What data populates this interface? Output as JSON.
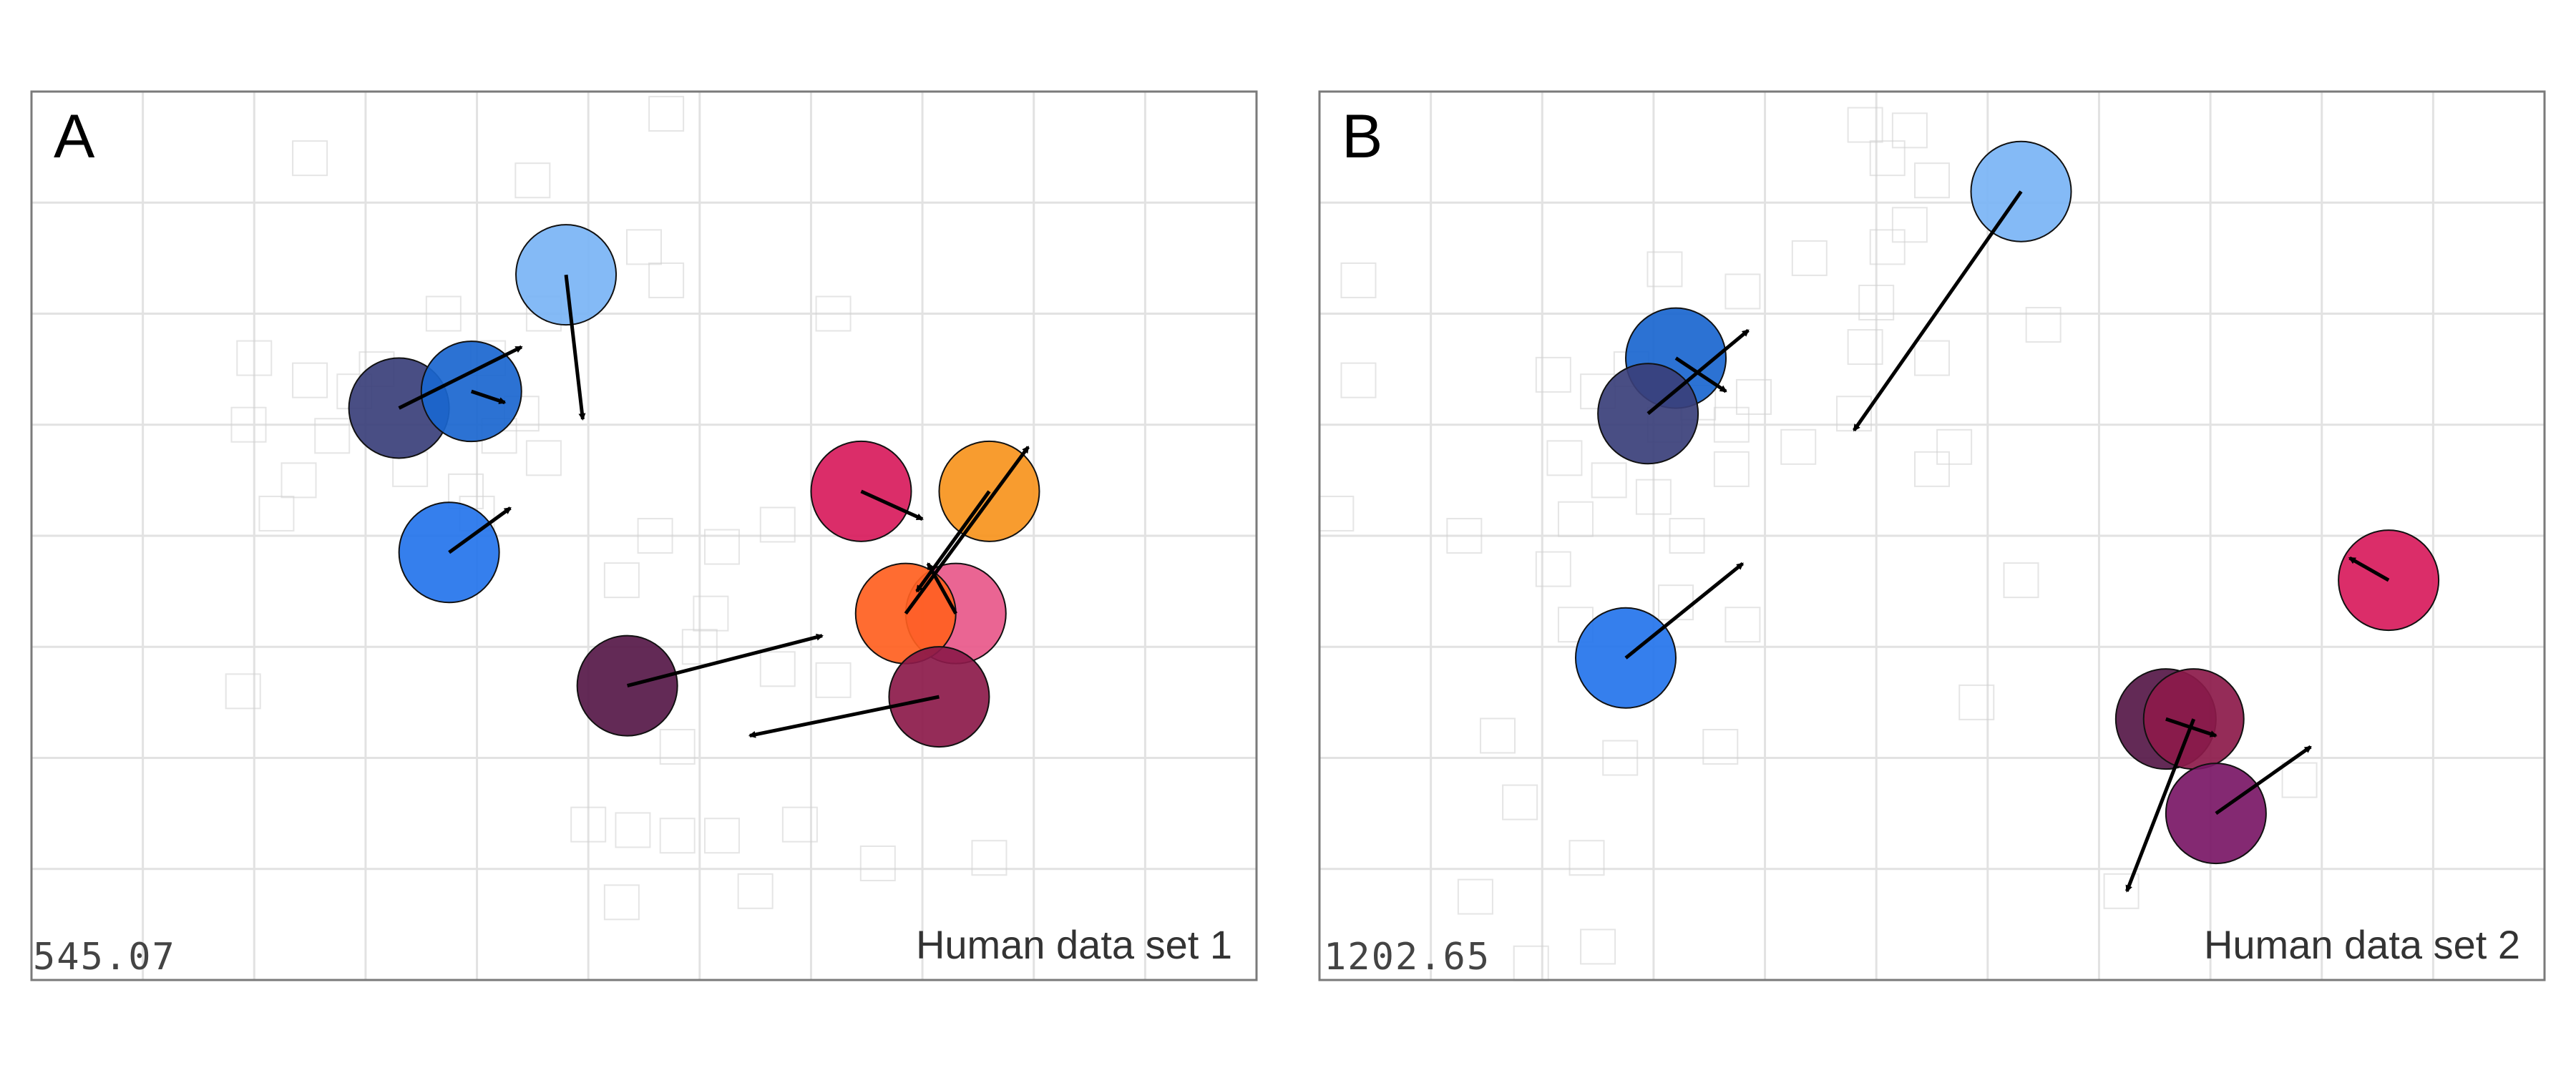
{
  "chart_data": [
    {
      "type": "scatter",
      "panel_label": "A",
      "corner_label": "Human data set 1",
      "corner_value": "545.07",
      "xlim": [
        0,
        11
      ],
      "ylim": [
        0,
        8
      ],
      "grid": true,
      "points": [
        {
          "x": 4.8,
          "y": 6.35,
          "color": "#7ab4f5",
          "dx": 0.15,
          "dy": -1.3
        },
        {
          "x": 3.3,
          "y": 5.15,
          "color": "#3a3f7a",
          "dx": 1.1,
          "dy": 0.55
        },
        {
          "x": 3.95,
          "y": 5.3,
          "color": "#1a66cf",
          "dx": 0.3,
          "dy": -0.1
        },
        {
          "x": 3.75,
          "y": 3.85,
          "color": "#2474ec",
          "dx": 0.55,
          "dy": 0.4
        },
        {
          "x": 7.45,
          "y": 4.4,
          "color": "#d81b5c",
          "dx": 0.55,
          "dy": -0.25
        },
        {
          "x": 8.6,
          "y": 4.4,
          "color": "#f7941d",
          "dx": -0.65,
          "dy": -0.9
        },
        {
          "x": 8.3,
          "y": 3.3,
          "color": "#e8588a",
          "dx": -0.25,
          "dy": 0.45
        },
        {
          "x": 7.85,
          "y": 3.3,
          "color": "#ff5f1f",
          "dx": 1.1,
          "dy": 1.5
        },
        {
          "x": 5.35,
          "y": 2.65,
          "color": "#561848",
          "dx": 1.75,
          "dy": 0.45
        },
        {
          "x": 8.15,
          "y": 2.55,
          "color": "#8c1a4a",
          "dx": -1.7,
          "dy": -0.35
        }
      ],
      "background_markers": [
        {
          "x": 2.5,
          "y": 5.4
        },
        {
          "x": 2.9,
          "y": 5.3
        },
        {
          "x": 3.1,
          "y": 5.5
        },
        {
          "x": 2.7,
          "y": 4.9
        },
        {
          "x": 3.4,
          "y": 4.6
        },
        {
          "x": 2.4,
          "y": 4.5
        },
        {
          "x": 3.9,
          "y": 4.4
        },
        {
          "x": 4.2,
          "y": 4.9
        },
        {
          "x": 4.4,
          "y": 5.1
        },
        {
          "x": 4.6,
          "y": 4.7
        },
        {
          "x": 4.0,
          "y": 4.2
        },
        {
          "x": 4.1,
          "y": 5.6
        },
        {
          "x": 3.7,
          "y": 6.0
        },
        {
          "x": 4.6,
          "y": 6.0
        },
        {
          "x": 5.5,
          "y": 6.6
        },
        {
          "x": 5.7,
          "y": 6.3
        },
        {
          "x": 7.2,
          "y": 6.0
        },
        {
          "x": 2.5,
          "y": 7.4
        },
        {
          "x": 4.5,
          "y": 7.2
        },
        {
          "x": 5.7,
          "y": 7.8
        },
        {
          "x": 5.6,
          "y": 4.0
        },
        {
          "x": 6.2,
          "y": 3.9
        },
        {
          "x": 6.1,
          "y": 3.3
        },
        {
          "x": 6.0,
          "y": 3.0
        },
        {
          "x": 6.7,
          "y": 2.8
        },
        {
          "x": 7.2,
          "y": 2.7
        },
        {
          "x": 6.7,
          "y": 4.1
        },
        {
          "x": 5.3,
          "y": 3.6
        },
        {
          "x": 5.8,
          "y": 2.1
        },
        {
          "x": 5.0,
          "y": 1.4
        },
        {
          "x": 5.4,
          "y": 1.35
        },
        {
          "x": 5.8,
          "y": 1.3
        },
        {
          "x": 6.2,
          "y": 1.3
        },
        {
          "x": 6.9,
          "y": 1.4
        },
        {
          "x": 7.6,
          "y": 1.05
        },
        {
          "x": 8.6,
          "y": 1.1
        },
        {
          "x": 6.5,
          "y": 0.8
        },
        {
          "x": 5.3,
          "y": 0.7
        },
        {
          "x": 1.9,
          "y": 2.6
        },
        {
          "x": 2.0,
          "y": 5.6
        },
        {
          "x": 1.95,
          "y": 5.0
        },
        {
          "x": 2.2,
          "y": 4.2
        }
      ]
    },
    {
      "type": "scatter",
      "panel_label": "B",
      "corner_label": "Human data set 2",
      "corner_value": "1202.65",
      "xlim": [
        0,
        11
      ],
      "ylim": [
        0,
        8
      ],
      "grid": true,
      "points": [
        {
          "x": 6.3,
          "y": 7.1,
          "color": "#7ab4f5",
          "dx": -1.5,
          "dy": -2.15
        },
        {
          "x": 3.2,
          "y": 5.6,
          "color": "#1a66cf",
          "dx": 0.45,
          "dy": -0.3
        },
        {
          "x": 2.95,
          "y": 5.1,
          "color": "#3a3f7a",
          "dx": 0.9,
          "dy": 0.75
        },
        {
          "x": 2.75,
          "y": 2.9,
          "color": "#2474ec",
          "dx": 1.05,
          "dy": 0.85
        },
        {
          "x": 9.6,
          "y": 3.6,
          "color": "#d81b5c",
          "dx": -0.35,
          "dy": 0.2
        },
        {
          "x": 7.6,
          "y": 2.35,
          "color": "#561848",
          "dx": 0.45,
          "dy": -0.15
        },
        {
          "x": 7.85,
          "y": 2.35,
          "color": "#8c1a4a",
          "dx": -0.6,
          "dy": -1.55
        },
        {
          "x": 8.05,
          "y": 1.5,
          "color": "#7a1766",
          "dx": 0.85,
          "dy": 0.6
        }
      ],
      "background_markers": [
        {
          "x": 2.1,
          "y": 5.45
        },
        {
          "x": 2.5,
          "y": 5.3
        },
        {
          "x": 2.8,
          "y": 5.5
        },
        {
          "x": 3.1,
          "y": 5.0
        },
        {
          "x": 3.4,
          "y": 5.2
        },
        {
          "x": 3.7,
          "y": 5.0
        },
        {
          "x": 3.9,
          "y": 5.25
        },
        {
          "x": 2.2,
          "y": 4.7
        },
        {
          "x": 2.6,
          "y": 4.5
        },
        {
          "x": 3.0,
          "y": 4.35
        },
        {
          "x": 2.3,
          "y": 4.15
        },
        {
          "x": 3.3,
          "y": 4.0
        },
        {
          "x": 3.7,
          "y": 4.6
        },
        {
          "x": 4.3,
          "y": 4.8
        },
        {
          "x": 4.8,
          "y": 5.1
        },
        {
          "x": 4.9,
          "y": 5.7
        },
        {
          "x": 5.1,
          "y": 6.6
        },
        {
          "x": 5.0,
          "y": 6.1
        },
        {
          "x": 5.3,
          "y": 6.8
        },
        {
          "x": 5.5,
          "y": 7.2
        },
        {
          "x": 5.1,
          "y": 7.4
        },
        {
          "x": 4.9,
          "y": 7.7
        },
        {
          "x": 5.3,
          "y": 7.65
        },
        {
          "x": 5.5,
          "y": 5.6
        },
        {
          "x": 4.4,
          "y": 6.5
        },
        {
          "x": 3.8,
          "y": 6.2
        },
        {
          "x": 3.1,
          "y": 6.4
        },
        {
          "x": 0.35,
          "y": 6.3
        },
        {
          "x": 0.35,
          "y": 5.4
        },
        {
          "x": 0.15,
          "y": 4.2
        },
        {
          "x": 1.3,
          "y": 4.0
        },
        {
          "x": 2.1,
          "y": 3.7
        },
        {
          "x": 3.2,
          "y": 3.4
        },
        {
          "x": 3.8,
          "y": 3.2
        },
        {
          "x": 2.3,
          "y": 3.2
        },
        {
          "x": 1.6,
          "y": 2.2
        },
        {
          "x": 2.7,
          "y": 2.0
        },
        {
          "x": 3.6,
          "y": 2.1
        },
        {
          "x": 1.8,
          "y": 1.6
        },
        {
          "x": 2.4,
          "y": 1.1
        },
        {
          "x": 1.4,
          "y": 0.75
        },
        {
          "x": 2.5,
          "y": 0.3
        },
        {
          "x": 1.9,
          "y": 0.15
        },
        {
          "x": 6.3,
          "y": 3.6
        },
        {
          "x": 5.7,
          "y": 4.8
        },
        {
          "x": 6.5,
          "y": 5.9
        },
        {
          "x": 5.5,
          "y": 4.6
        },
        {
          "x": 5.9,
          "y": 2.5
        },
        {
          "x": 8.8,
          "y": 1.8
        },
        {
          "x": 7.2,
          "y": 0.8
        }
      ]
    }
  ]
}
